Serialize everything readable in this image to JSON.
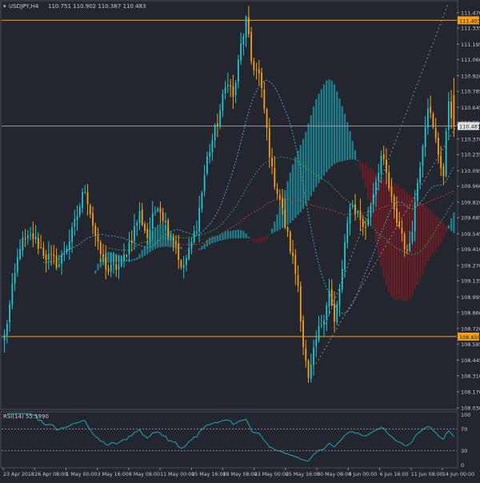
{
  "header": {
    "symbol": "USDJPY,H4",
    "ohlc": "110.751 110.902 110.387 110.483"
  },
  "colors": {
    "background": "#24262f",
    "text": "#c8c8c8",
    "bull_candle": "#1fc7d4",
    "bear_candle": "#f5a01a",
    "cloud_bull": "#1d8f9e",
    "cloud_bear": "#7a1a24",
    "ma_fast": "#3fa8b8",
    "ma_mid": "#2e9d3c",
    "ma_slow": "#c0392b",
    "level_line": "#f5a01a",
    "price_line": "#9a9a9a",
    "rsi_line": "#1fa6b5",
    "trend_line": "#8a8a8a"
  },
  "chart_data": [
    {
      "type": "candlestick",
      "title": "USDJPY,H4",
      "x_labels": [
        "23 Apr 2018",
        "26 Apr 08:00",
        "1 May 00:00",
        "3 May 16:00",
        "8 May 08:00",
        "11 May 00:00",
        "15 May 16:00",
        "18 May 08:00",
        "23 May 00:00",
        "25 May 16:00",
        "30 May 08:00",
        "4 Jun 00:00",
        "6 Jun 16:00",
        "11 Jun 08:00",
        "14 Jun 00:00"
      ],
      "y_ticks": [
        "111.470",
        "111.335",
        "111.195",
        "111.060",
        "110.920",
        "110.785",
        "110.645",
        "110.510",
        "110.370",
        "110.235",
        "110.095",
        "109.960",
        "109.820",
        "109.685",
        "109.545",
        "109.410",
        "109.270",
        "109.135",
        "108.995",
        "108.860",
        "108.720",
        "108.585",
        "108.445",
        "108.310",
        "108.170",
        "108.030"
      ],
      "ylim": [
        108.03,
        111.545
      ],
      "levels": [
        {
          "label": "111.403",
          "value": 111.403
        },
        {
          "label": "108.650",
          "value": 108.65
        }
      ],
      "current_price": {
        "label": "110.483",
        "value": 110.483
      },
      "waypoints": [
        [
          0,
          108.65
        ],
        [
          6,
          109.45
        ],
        [
          11,
          109.52
        ],
        [
          16,
          109.35
        ],
        [
          21,
          109.28
        ],
        [
          26,
          109.55
        ],
        [
          31,
          109.95
        ],
        [
          36,
          109.42
        ],
        [
          40,
          109.22
        ],
        [
          45,
          109.28
        ],
        [
          49,
          109.52
        ],
        [
          52,
          109.72
        ],
        [
          55,
          109.52
        ],
        [
          59,
          109.82
        ],
        [
          63,
          109.58
        ],
        [
          66,
          109.48
        ],
        [
          68,
          109.22
        ],
        [
          71,
          109.38
        ],
        [
          74,
          109.62
        ],
        [
          78,
          110.2
        ],
        [
          82,
          110.52
        ],
        [
          86,
          110.9
        ],
        [
          88,
          110.72
        ],
        [
          91,
          111.18
        ],
        [
          93,
          111.4
        ],
        [
          95,
          111.05
        ],
        [
          98,
          110.92
        ],
        [
          100,
          110.62
        ],
        [
          103,
          110.08
        ],
        [
          106,
          109.85
        ],
        [
          108,
          109.62
        ],
        [
          110,
          109.42
        ],
        [
          113,
          109.1
        ],
        [
          115,
          108.58
        ],
        [
          117,
          108.25
        ],
        [
          120,
          108.62
        ],
        [
          123,
          108.85
        ],
        [
          125,
          109.05
        ],
        [
          127,
          108.76
        ],
        [
          130,
          109.22
        ],
        [
          133,
          109.82
        ],
        [
          136,
          109.72
        ],
        [
          139,
          109.58
        ],
        [
          142,
          109.92
        ],
        [
          145,
          110.22
        ],
        [
          147,
          110.05
        ],
        [
          150,
          109.72
        ],
        [
          153,
          109.55
        ],
        [
          155,
          109.35
        ],
        [
          157,
          109.62
        ],
        [
          159,
          110.0
        ],
        [
          161,
          110.35
        ],
        [
          163,
          110.68
        ],
        [
          165,
          110.45
        ],
        [
          167,
          110.25
        ],
        [
          169,
          110.05
        ],
        [
          171,
          110.72
        ],
        [
          173,
          110.48
        ]
      ],
      "candle_count": 174,
      "ohlc_last": {
        "open": 110.751,
        "high": 110.902,
        "low": 110.387,
        "close": 110.483
      }
    },
    {
      "type": "line",
      "title": "RSI(14) 55.5990",
      "y_ticks": [
        "100",
        "70",
        "30",
        "0"
      ],
      "ylim": [
        0,
        100
      ],
      "levels": [
        70,
        30
      ],
      "last_value": 55.599
    }
  ]
}
